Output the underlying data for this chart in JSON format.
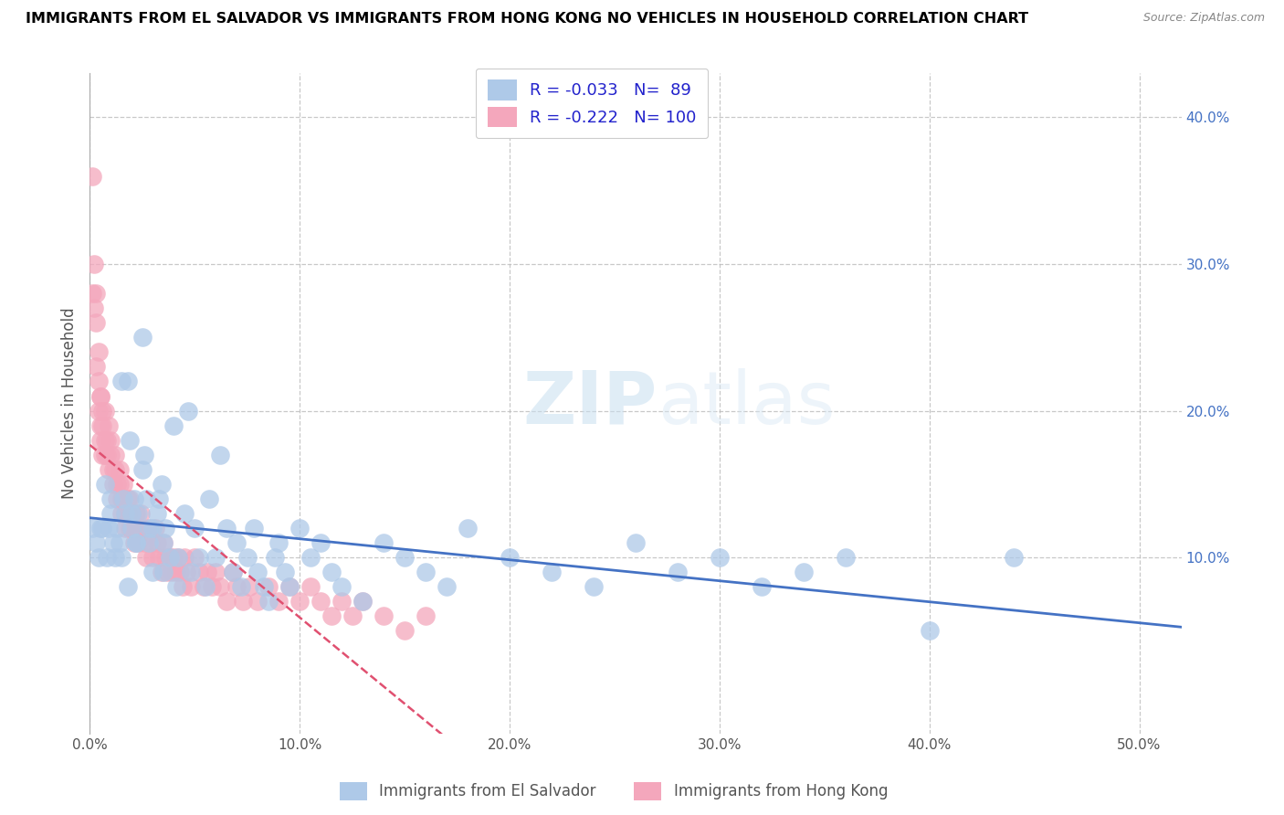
{
  "title": "IMMIGRANTS FROM EL SALVADOR VS IMMIGRANTS FROM HONG KONG NO VEHICLES IN HOUSEHOLD CORRELATION CHART",
  "source": "Source: ZipAtlas.com",
  "ylabel": "No Vehicles in Household",
  "R_el_salvador": -0.033,
  "N_el_salvador": 89,
  "R_hong_kong": -0.222,
  "N_hong_kong": 100,
  "color_el_salvador": "#aec9e8",
  "color_hong_kong": "#f4a7bc",
  "color_el_salvador_line": "#4472c4",
  "color_hong_kong_line": "#e05070",
  "watermark_zip": "ZIP",
  "watermark_atlas": "atlas",
  "xlim": [
    0.0,
    0.52
  ],
  "ylim": [
    -0.02,
    0.43
  ],
  "el_salvador_x": [
    0.001,
    0.003,
    0.004,
    0.005,
    0.006,
    0.007,
    0.008,
    0.009,
    0.01,
    0.011,
    0.012,
    0.013,
    0.014,
    0.015,
    0.016,
    0.017,
    0.018,
    0.019,
    0.02,
    0.021,
    0.022,
    0.023,
    0.025,
    0.026,
    0.027,
    0.028,
    0.03,
    0.032,
    0.033,
    0.034,
    0.035,
    0.036,
    0.038,
    0.04,
    0.041,
    0.042,
    0.045,
    0.047,
    0.048,
    0.05,
    0.052,
    0.055,
    0.057,
    0.06,
    0.062,
    0.065,
    0.068,
    0.07,
    0.072,
    0.075,
    0.078,
    0.08,
    0.083,
    0.085,
    0.088,
    0.09,
    0.093,
    0.095,
    0.1,
    0.105,
    0.11,
    0.115,
    0.12,
    0.13,
    0.14,
    0.15,
    0.16,
    0.17,
    0.18,
    0.2,
    0.22,
    0.24,
    0.26,
    0.28,
    0.3,
    0.32,
    0.34,
    0.36,
    0.4,
    0.44,
    0.02,
    0.025,
    0.03,
    0.01,
    0.015,
    0.018,
    0.022,
    0.028,
    0.035
  ],
  "el_salvador_y": [
    0.12,
    0.11,
    0.1,
    0.12,
    0.12,
    0.15,
    0.1,
    0.12,
    0.14,
    0.11,
    0.1,
    0.12,
    0.11,
    0.22,
    0.14,
    0.13,
    0.22,
    0.18,
    0.12,
    0.14,
    0.11,
    0.13,
    0.25,
    0.17,
    0.14,
    0.11,
    0.12,
    0.13,
    0.14,
    0.15,
    0.11,
    0.12,
    0.1,
    0.19,
    0.08,
    0.1,
    0.13,
    0.2,
    0.09,
    0.12,
    0.1,
    0.08,
    0.14,
    0.1,
    0.17,
    0.12,
    0.09,
    0.11,
    0.08,
    0.1,
    0.12,
    0.09,
    0.08,
    0.07,
    0.1,
    0.11,
    0.09,
    0.08,
    0.12,
    0.1,
    0.11,
    0.09,
    0.08,
    0.07,
    0.11,
    0.1,
    0.09,
    0.08,
    0.12,
    0.1,
    0.09,
    0.08,
    0.11,
    0.09,
    0.1,
    0.08,
    0.09,
    0.1,
    0.05,
    0.1,
    0.13,
    0.16,
    0.09,
    0.13,
    0.1,
    0.08,
    0.11,
    0.12,
    0.09
  ],
  "hong_kong_x": [
    0.001,
    0.001,
    0.002,
    0.002,
    0.003,
    0.003,
    0.003,
    0.004,
    0.004,
    0.004,
    0.005,
    0.005,
    0.005,
    0.005,
    0.006,
    0.006,
    0.006,
    0.007,
    0.007,
    0.007,
    0.008,
    0.008,
    0.009,
    0.009,
    0.01,
    0.01,
    0.011,
    0.011,
    0.012,
    0.012,
    0.013,
    0.013,
    0.014,
    0.014,
    0.015,
    0.015,
    0.016,
    0.016,
    0.017,
    0.017,
    0.018,
    0.018,
    0.019,
    0.019,
    0.02,
    0.02,
    0.021,
    0.022,
    0.022,
    0.023,
    0.024,
    0.025,
    0.026,
    0.027,
    0.028,
    0.029,
    0.03,
    0.031,
    0.032,
    0.033,
    0.034,
    0.035,
    0.036,
    0.037,
    0.038,
    0.039,
    0.04,
    0.041,
    0.042,
    0.043,
    0.044,
    0.045,
    0.046,
    0.048,
    0.05,
    0.052,
    0.054,
    0.056,
    0.058,
    0.06,
    0.062,
    0.065,
    0.068,
    0.07,
    0.073,
    0.076,
    0.08,
    0.085,
    0.09,
    0.095,
    0.1,
    0.105,
    0.11,
    0.115,
    0.12,
    0.125,
    0.13,
    0.14,
    0.15,
    0.16
  ],
  "hong_kong_y": [
    0.36,
    0.28,
    0.3,
    0.27,
    0.28,
    0.26,
    0.23,
    0.24,
    0.22,
    0.2,
    0.21,
    0.19,
    0.18,
    0.21,
    0.17,
    0.2,
    0.19,
    0.18,
    0.17,
    0.2,
    0.18,
    0.17,
    0.16,
    0.19,
    0.18,
    0.17,
    0.16,
    0.15,
    0.17,
    0.16,
    0.15,
    0.14,
    0.16,
    0.15,
    0.14,
    0.13,
    0.15,
    0.14,
    0.13,
    0.12,
    0.14,
    0.13,
    0.12,
    0.14,
    0.13,
    0.12,
    0.11,
    0.13,
    0.12,
    0.11,
    0.13,
    0.12,
    0.11,
    0.1,
    0.12,
    0.11,
    0.1,
    0.12,
    0.11,
    0.1,
    0.09,
    0.11,
    0.1,
    0.09,
    0.1,
    0.09,
    0.1,
    0.09,
    0.1,
    0.09,
    0.08,
    0.1,
    0.09,
    0.08,
    0.1,
    0.09,
    0.08,
    0.09,
    0.08,
    0.09,
    0.08,
    0.07,
    0.09,
    0.08,
    0.07,
    0.08,
    0.07,
    0.08,
    0.07,
    0.08,
    0.07,
    0.08,
    0.07,
    0.06,
    0.07,
    0.06,
    0.07,
    0.06,
    0.05,
    0.06
  ]
}
